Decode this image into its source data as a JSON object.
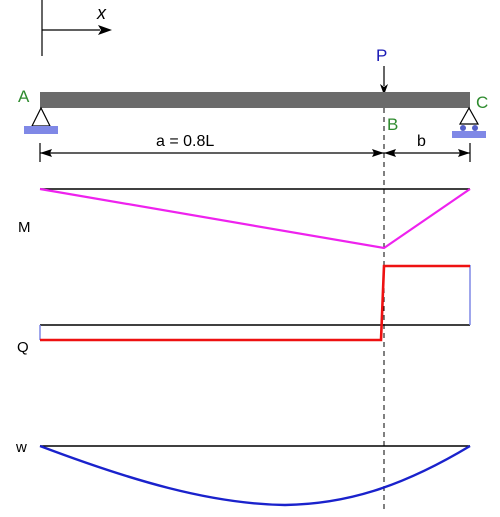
{
  "axis": {
    "label": "x"
  },
  "load": {
    "label": "P"
  },
  "points": {
    "a": "A",
    "b": "B",
    "c": "C"
  },
  "dimensions": {
    "a": "a = 0.8L",
    "b": "b"
  },
  "rows": {
    "moment": "M",
    "shear": "Q",
    "deflection": "w"
  },
  "colors": {
    "beam": "#6b6b6b",
    "point_labels": "#2e8b2e",
    "load": "#1a1ab5",
    "moment": "#ee22ee",
    "shear": "#ee1111",
    "deflection": "#1a22cc",
    "support": "#7f88e6",
    "baseline": "#000000"
  }
}
